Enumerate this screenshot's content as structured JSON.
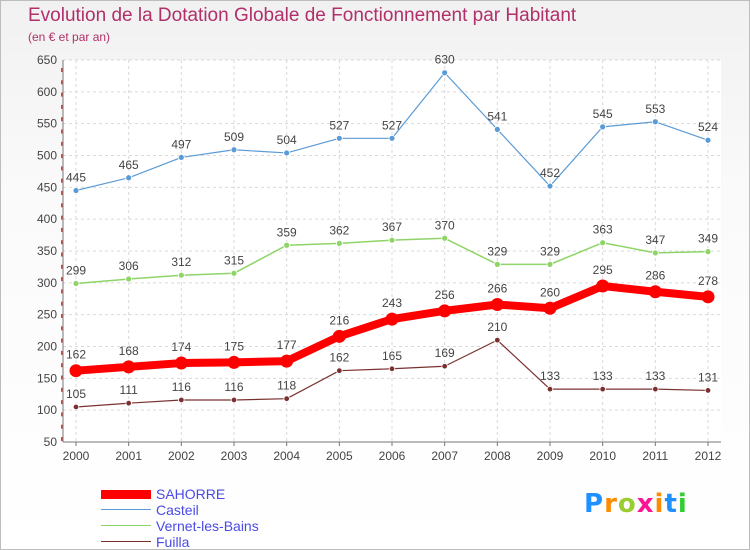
{
  "title": "Evolution de la Dotation Globale de Fonctionnement par Habitant",
  "subtitle": "(en € et par an)",
  "logo": {
    "letters": [
      "P",
      "r",
      "o",
      "x",
      "i",
      "t",
      "i"
    ],
    "colors": [
      "#1e90ff",
      "#ff8c00",
      "#9acd32",
      "#ff1493",
      "#ff8c00",
      "#1e90ff",
      "#32cd32"
    ]
  },
  "chart_data": {
    "type": "line",
    "title": "Evolution de la Dotation Globale de Fonctionnement par Habitant",
    "subtitle": "(en € et par an)",
    "x": [
      "2000",
      "2001",
      "2002",
      "2003",
      "2004",
      "2005",
      "2006",
      "2007",
      "2008",
      "2009",
      "2010",
      "2011",
      "2012"
    ],
    "ylim": [
      50,
      650
    ],
    "yticks": [
      50,
      100,
      150,
      200,
      250,
      300,
      350,
      400,
      450,
      500,
      550,
      600,
      650
    ],
    "grid": true,
    "legend_position": "bottom-left",
    "series": [
      {
        "name": "SAHORRE",
        "color": "#ff0000",
        "values": [
          162,
          168,
          174,
          175,
          177,
          216,
          243,
          256,
          266,
          260,
          295,
          286,
          278
        ]
      },
      {
        "name": "Casteil",
        "color": "#5b9bd5",
        "values": [
          445,
          465,
          497,
          509,
          504,
          527,
          527,
          630,
          541,
          452,
          545,
          553,
          524
        ]
      },
      {
        "name": "Vernet-les-Bains",
        "color": "#8fd466",
        "values": [
          299,
          306,
          312,
          315,
          359,
          362,
          367,
          370,
          329,
          329,
          363,
          347,
          349
        ]
      },
      {
        "name": "Fuilla",
        "color": "#7b3030",
        "values": [
          105,
          111,
          116,
          116,
          118,
          162,
          165,
          169,
          210,
          133,
          133,
          133,
          131
        ]
      }
    ]
  }
}
